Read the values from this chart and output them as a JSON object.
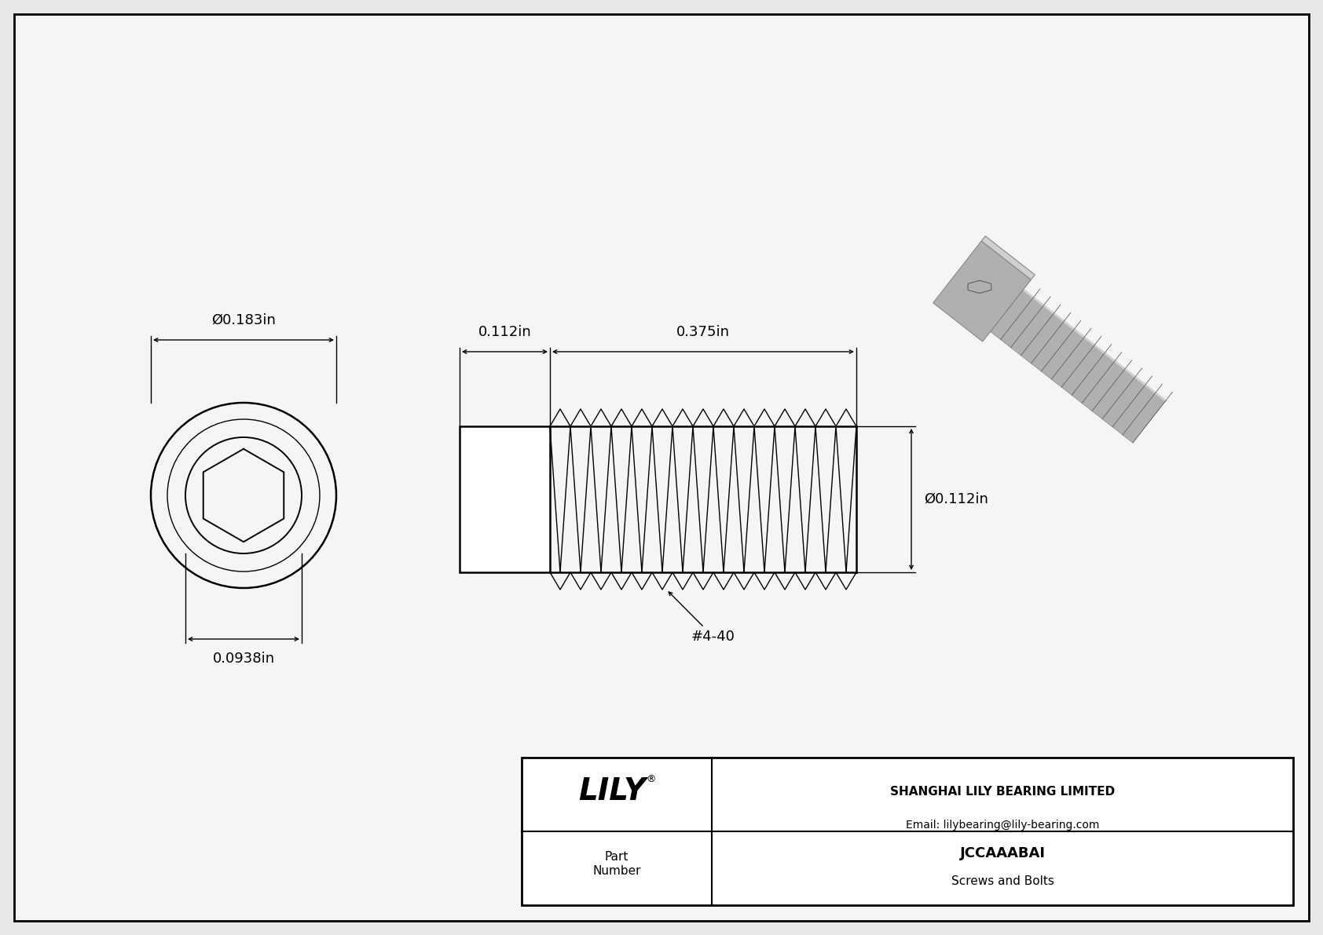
{
  "bg_color": "#e8e8e8",
  "inner_bg": "#f5f5f5",
  "border_color": "#000000",
  "line_color": "#000000",
  "title": "JCCAAABAI",
  "subtitle": "Screws and Bolts",
  "company": "SHANGHAI LILY BEARING LIMITED",
  "email": "Email: lilybearing@lily-bearing.com",
  "part_label": "Part\nNumber",
  "dim_head_diameter": "Ø0.183in",
  "dim_head_length": "0.112in",
  "dim_thread_length": "0.375in",
  "dim_thread_diameter": "Ø0.112in",
  "dim_socket_diameter": "0.0938in",
  "dim_thread_label": "#4-40",
  "n_threads": 15
}
